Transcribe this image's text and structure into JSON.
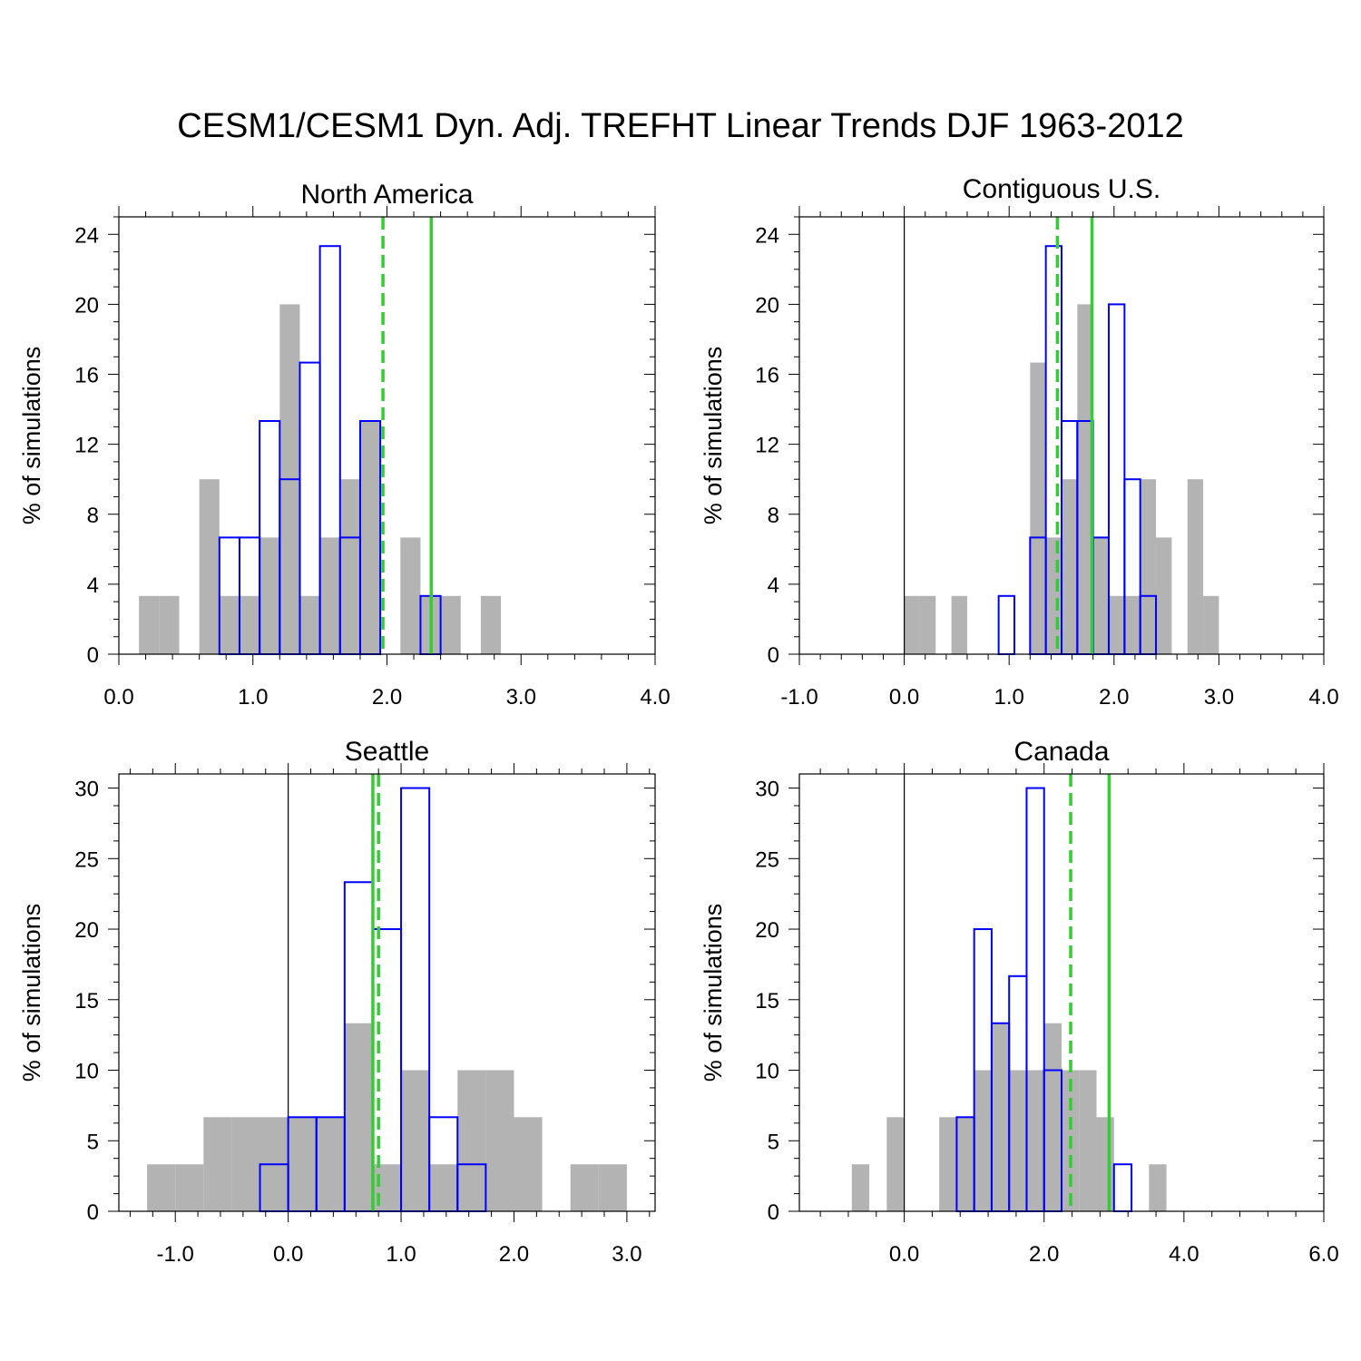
{
  "title": "CESM1/CESM1 Dyn. Adj. TREFHT Linear Trends DJF 1963-2012",
  "colors": {
    "raw_bars": "#b3b3b3",
    "dynadj_bars": "#0000ff",
    "observed_lines": "#33cc33",
    "axes": "#000000"
  },
  "chart_data": [
    {
      "type": "bar",
      "title": "North America",
      "ylabel": "% of simulations",
      "xlabel": "",
      "xlim": [
        0.0,
        4.0
      ],
      "ylim": [
        0,
        25
      ],
      "xticks": [
        0.0,
        1.0,
        2.0,
        3.0,
        4.0
      ],
      "xtick_labels": [
        "0.0",
        "1.0",
        "2.0",
        "3.0",
        "4.0"
      ],
      "yticks": [
        0,
        4,
        8,
        12,
        16,
        20,
        24
      ],
      "ytick_labels": [
        "0",
        "4",
        "8",
        "12",
        "16",
        "20",
        "24"
      ],
      "bin_width": 0.15,
      "zero_line": false,
      "series": [
        {
          "name": "CESM1",
          "style": "filled",
          "bins": [
            [
              0.15,
              3.33
            ],
            [
              0.3,
              3.33
            ],
            [
              0.6,
              10
            ],
            [
              0.75,
              3.33
            ],
            [
              0.9,
              3.33
            ],
            [
              1.05,
              6.67
            ],
            [
              1.2,
              20
            ],
            [
              1.35,
              3.33
            ],
            [
              1.5,
              6.67
            ],
            [
              1.65,
              10
            ],
            [
              1.8,
              13.33
            ],
            [
              2.1,
              6.67
            ],
            [
              2.25,
              3.33
            ],
            [
              2.4,
              3.33
            ],
            [
              2.7,
              3.33
            ]
          ]
        },
        {
          "name": "CESM1 Dyn. Adj.",
          "style": "outline",
          "bins": [
            [
              0.75,
              6.67
            ],
            [
              0.9,
              6.67
            ],
            [
              1.05,
              13.33
            ],
            [
              1.2,
              10
            ],
            [
              1.35,
              16.67
            ],
            [
              1.5,
              23.33
            ],
            [
              1.65,
              6.67
            ],
            [
              1.8,
              13.33
            ],
            [
              2.25,
              3.33
            ]
          ]
        }
      ],
      "vlines": [
        {
          "name": "observed-dashed",
          "x": 1.97,
          "style": "dashed"
        },
        {
          "name": "observed-solid",
          "x": 2.33,
          "style": "solid"
        }
      ]
    },
    {
      "type": "bar",
      "title": "Contiguous U.S.",
      "ylabel": "% of simulations",
      "xlabel": "",
      "xlim": [
        -1.0,
        4.0
      ],
      "ylim": [
        0,
        25
      ],
      "xticks": [
        -1.0,
        0.0,
        1.0,
        2.0,
        3.0,
        4.0
      ],
      "xtick_labels": [
        "-1.0",
        "0.0",
        "1.0",
        "2.0",
        "3.0",
        "4.0"
      ],
      "yticks": [
        0,
        4,
        8,
        12,
        16,
        20,
        24
      ],
      "ytick_labels": [
        "0",
        "4",
        "8",
        "12",
        "16",
        "20",
        "24"
      ],
      "bin_width": 0.15,
      "zero_line": true,
      "series": [
        {
          "name": "CESM1",
          "style": "filled",
          "bins": [
            [
              0.0,
              3.33
            ],
            [
              0.15,
              3.33
            ],
            [
              0.45,
              3.33
            ],
            [
              1.2,
              16.67
            ],
            [
              1.35,
              6.67
            ],
            [
              1.5,
              10
            ],
            [
              1.65,
              20
            ],
            [
              1.8,
              6.67
            ],
            [
              1.95,
              3.33
            ],
            [
              2.1,
              3.33
            ],
            [
              2.25,
              10
            ],
            [
              2.4,
              6.67
            ],
            [
              2.7,
              10
            ],
            [
              2.85,
              3.33
            ]
          ]
        },
        {
          "name": "CESM1 Dyn. Adj.",
          "style": "outline",
          "bins": [
            [
              0.9,
              3.33
            ],
            [
              1.2,
              6.67
            ],
            [
              1.35,
              23.33
            ],
            [
              1.5,
              13.33
            ],
            [
              1.65,
              13.33
            ],
            [
              1.8,
              6.67
            ],
            [
              1.95,
              20
            ],
            [
              2.1,
              10
            ],
            [
              2.25,
              3.33
            ]
          ]
        }
      ],
      "vlines": [
        {
          "name": "observed-dashed",
          "x": 1.46,
          "style": "dashed"
        },
        {
          "name": "observed-solid",
          "x": 1.79,
          "style": "solid"
        }
      ]
    },
    {
      "type": "bar",
      "title": "Seattle",
      "ylabel": "% of simulations",
      "xlabel": "",
      "xlim": [
        -1.5,
        3.25
      ],
      "ylim": [
        0,
        31
      ],
      "xticks": [
        -1.0,
        0.0,
        1.0,
        2.0,
        3.0
      ],
      "xtick_labels": [
        "-1.0",
        "0.0",
        "1.0",
        "2.0",
        "3.0"
      ],
      "yticks": [
        0,
        5,
        10,
        15,
        20,
        25,
        30
      ],
      "ytick_labels": [
        "0",
        "5",
        "10",
        "15",
        "20",
        "25",
        "30"
      ],
      "bin_width": 0.25,
      "zero_line": true,
      "series": [
        {
          "name": "CESM1",
          "style": "filled",
          "bins": [
            [
              -1.25,
              3.33
            ],
            [
              -1.0,
              3.33
            ],
            [
              -0.75,
              6.67
            ],
            [
              -0.5,
              6.67
            ],
            [
              -0.25,
              6.67
            ],
            [
              0.0,
              6.67
            ],
            [
              0.25,
              6.67
            ],
            [
              0.5,
              13.33
            ],
            [
              0.75,
              3.33
            ],
            [
              1.0,
              10
            ],
            [
              1.25,
              3.33
            ],
            [
              1.5,
              10
            ],
            [
              1.75,
              10
            ],
            [
              2.0,
              6.67
            ],
            [
              2.5,
              3.33
            ],
            [
              2.75,
              3.33
            ]
          ]
        },
        {
          "name": "CESM1 Dyn. Adj.",
          "style": "outline",
          "bins": [
            [
              -0.25,
              3.33
            ],
            [
              0.0,
              6.67
            ],
            [
              0.25,
              6.67
            ],
            [
              0.5,
              23.33
            ],
            [
              0.75,
              20
            ],
            [
              1.0,
              30
            ],
            [
              1.25,
              6.67
            ],
            [
              1.5,
              3.33
            ]
          ]
        }
      ],
      "vlines": [
        {
          "name": "observed-solid",
          "x": 0.75,
          "style": "solid"
        },
        {
          "name": "observed-dashed",
          "x": 0.8,
          "style": "dashed"
        }
      ]
    },
    {
      "type": "bar",
      "title": "Canada",
      "ylabel": "% of simulations",
      "xlabel": "",
      "xlim": [
        -1.5,
        6.0
      ],
      "ylim": [
        0,
        31
      ],
      "xticks": [
        0.0,
        2.0,
        4.0,
        6.0
      ],
      "xtick_labels": [
        "0.0",
        "2.0",
        "4.0",
        "6.0"
      ],
      "yticks": [
        0,
        5,
        10,
        15,
        20,
        25,
        30
      ],
      "ytick_labels": [
        "0",
        "5",
        "10",
        "15",
        "20",
        "25",
        "30"
      ],
      "bin_width": 0.25,
      "zero_line": true,
      "series": [
        {
          "name": "CESM1",
          "style": "filled",
          "bins": [
            [
              -0.75,
              3.33
            ],
            [
              -0.25,
              6.67
            ],
            [
              0.5,
              6.67
            ],
            [
              0.75,
              6.67
            ],
            [
              1.0,
              10
            ],
            [
              1.25,
              13.33
            ],
            [
              1.5,
              10
            ],
            [
              1.75,
              10
            ],
            [
              2.0,
              13.33
            ],
            [
              2.25,
              10
            ],
            [
              2.5,
              10
            ],
            [
              2.75,
              6.67
            ],
            [
              3.5,
              3.33
            ]
          ]
        },
        {
          "name": "CESM1 Dyn. Adj.",
          "style": "outline",
          "bins": [
            [
              0.75,
              6.67
            ],
            [
              1.0,
              20
            ],
            [
              1.25,
              13.33
            ],
            [
              1.5,
              16.67
            ],
            [
              1.75,
              30
            ],
            [
              2.0,
              10
            ],
            [
              3.0,
              3.33
            ]
          ]
        }
      ],
      "vlines": [
        {
          "name": "observed-dashed",
          "x": 2.38,
          "style": "dashed"
        },
        {
          "name": "observed-solid",
          "x": 2.93,
          "style": "solid"
        }
      ]
    }
  ]
}
